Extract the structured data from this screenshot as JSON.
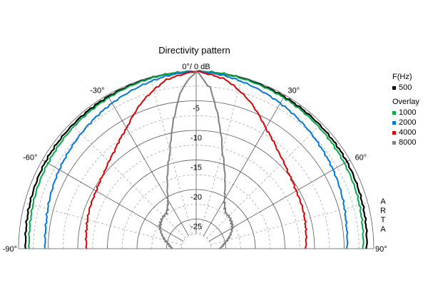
{
  "chart_data": {
    "type": "polar",
    "title": "Directivity pattern",
    "subtitle": "",
    "angle_range_deg": [
      -90,
      90
    ],
    "radial_range_db": [
      -30,
      0
    ],
    "radial_ticks": [
      {
        "value": 0,
        "label": "0°/ 0 dB"
      },
      {
        "value": -5,
        "label": "-5"
      },
      {
        "value": -10,
        "label": "-10"
      },
      {
        "value": -15,
        "label": "-15"
      },
      {
        "value": -20,
        "label": "-20"
      },
      {
        "value": -25,
        "label": "-25"
      }
    ],
    "angle_labels": [
      {
        "angle": -90,
        "label": "-90°"
      },
      {
        "angle": -60,
        "label": "-60°"
      },
      {
        "angle": -30,
        "label": "-30°"
      },
      {
        "angle": 30,
        "label": "30°"
      },
      {
        "angle": 60,
        "label": "60°"
      },
      {
        "angle": 90,
        "label": "90°"
      }
    ],
    "grid": true,
    "legend": {
      "placement": "right",
      "header": "F(Hz)",
      "overlay_header": "Overlay"
    },
    "watermark": "ARTA",
    "series": [
      {
        "name": "500",
        "color": "#000000",
        "angles": [
          0,
          10,
          20,
          30,
          40,
          50,
          60,
          70,
          80,
          90
        ],
        "values_db": [
          0,
          -0.1,
          -0.2,
          -0.3,
          -0.4,
          -0.5,
          -0.6,
          -0.8,
          -1.0,
          -1.2
        ]
      },
      {
        "name": "1000",
        "color": "#00aa44",
        "angles": [
          0,
          10,
          20,
          30,
          40,
          50,
          60,
          70,
          80,
          90
        ],
        "values_db": [
          0,
          -0.1,
          -0.3,
          -0.5,
          -0.7,
          -0.9,
          -1.1,
          -1.3,
          -1.6,
          -1.8
        ]
      },
      {
        "name": "2000",
        "color": "#0077dd",
        "angles": [
          0,
          10,
          20,
          30,
          40,
          50,
          60,
          70,
          80,
          90
        ],
        "values_db": [
          0,
          -0.4,
          -1.0,
          -1.6,
          -2.2,
          -2.8,
          -3.3,
          -3.8,
          -4.3,
          -4.5
        ]
      },
      {
        "name": "4000",
        "color": "#dd0000",
        "angles": [
          0,
          10,
          20,
          30,
          40,
          50,
          60,
          70,
          80,
          90
        ],
        "values_db": [
          0,
          -1.0,
          -3.5,
          -6.5,
          -8.5,
          -9.8,
          -10.5,
          -10.8,
          -11.2,
          -11.5
        ]
      },
      {
        "name": "8000",
        "color": "#808080",
        "angles": [
          0,
          5,
          10,
          15,
          20,
          25,
          30,
          35,
          40,
          45,
          50,
          60,
          70,
          80,
          90
        ],
        "values_db": [
          0,
          -2.8,
          -8,
          -13,
          -16,
          -18.5,
          -20.5,
          -21.6,
          -22.2,
          -22.2,
          -22.4,
          -22.9,
          -24,
          -25.2,
          -26
        ]
      }
    ]
  }
}
